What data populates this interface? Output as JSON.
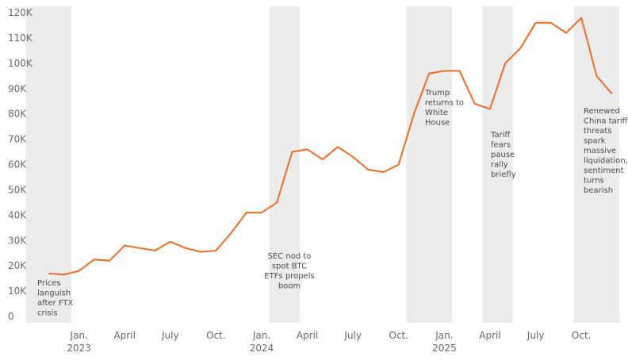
{
  "chart_data": {
    "type": "line",
    "x": [
      "2022-11",
      "2022-12",
      "2023-01",
      "2023-02",
      "2023-03",
      "2023-04",
      "2023-05",
      "2023-06",
      "2023-07",
      "2023-08",
      "2023-09",
      "2023-10",
      "2023-11",
      "2023-12",
      "2024-01",
      "2024-02",
      "2024-03",
      "2024-04",
      "2024-05",
      "2024-06",
      "2024-07",
      "2024-08",
      "2024-09",
      "2024-10",
      "2024-11",
      "2024-12",
      "2025-01",
      "2025-02",
      "2025-03",
      "2025-04",
      "2025-05",
      "2025-06",
      "2025-07",
      "2025-08",
      "2025-09",
      "2025-10",
      "2025-11",
      "2025-12"
    ],
    "values": [
      17,
      16.5,
      18,
      22.5,
      22,
      28,
      27,
      26,
      29.5,
      27,
      25.5,
      26,
      33,
      41,
      41,
      45,
      65,
      66,
      62,
      67,
      63,
      58,
      57,
      60,
      80,
      96,
      97,
      97,
      84,
      82,
      100,
      106,
      116,
      116,
      112,
      118,
      95,
      88
    ],
    "color": "#f26b21",
    "ylim": [
      0,
      120
    ],
    "yticks": [
      0,
      {
        "value": 10,
        "label": "10K"
      },
      {
        "value": 20,
        "label": "20K"
      },
      {
        "value": 30,
        "label": "30K"
      },
      {
        "value": 40,
        "label": "40K"
      },
      {
        "value": 50,
        "label": "50K"
      },
      {
        "value": 60,
        "label": "60K"
      },
      {
        "value": 70,
        "label": "70K"
      },
      {
        "value": 80,
        "label": "80K"
      },
      {
        "value": 90,
        "label": "90K"
      },
      {
        "value": 100,
        "label": "100K"
      },
      {
        "value": 110,
        "label": "110K"
      },
      {
        "value": 120,
        "label": "120K"
      }
    ],
    "xticks": [
      {
        "value": "2023-01",
        "label": "Jan.",
        "year": "2023"
      },
      {
        "value": "2023-04",
        "label": "April"
      },
      {
        "value": "2023-07",
        "label": "July"
      },
      {
        "value": "2023-10",
        "label": "Oct."
      },
      {
        "value": "2024-01",
        "label": "Jan.",
        "year": "2024"
      },
      {
        "value": "2024-04",
        "label": "April"
      },
      {
        "value": "2024-07",
        "label": "July"
      },
      {
        "value": "2024-10",
        "label": "Oct."
      },
      {
        "value": "2025-01",
        "label": "Jan.",
        "year": "2025"
      },
      {
        "value": "2025-04",
        "label": "April"
      },
      {
        "value": "2025-07",
        "label": "July"
      },
      {
        "value": "2025-10",
        "label": "Oct."
      }
    ],
    "annotations": [
      {
        "start": "2022-10",
        "end": "2022-12",
        "lines": [
          "Prices",
          "languish",
          "after FTX",
          "crisis"
        ]
      },
      {
        "start": "2024-02",
        "end": "2024-03",
        "lines": [
          "SEC nod to",
          "spot BTC",
          "ETFs propels",
          "boom"
        ]
      },
      {
        "start": "2024-11",
        "end": "2025-01",
        "lines": [
          "Trump",
          "returns to",
          "White",
          "House"
        ]
      },
      {
        "start": "2025-04",
        "end": "2025-05",
        "lines": [
          "Tariff",
          "fears",
          "pause",
          "rally",
          "briefly"
        ]
      },
      {
        "start": "2025-10",
        "end": "2025-12",
        "lines": [
          "Renewed",
          "China tariff",
          "threats",
          "spark",
          "massive",
          "liquidation,",
          "sentiment",
          "turns",
          "bearish"
        ]
      }
    ]
  }
}
